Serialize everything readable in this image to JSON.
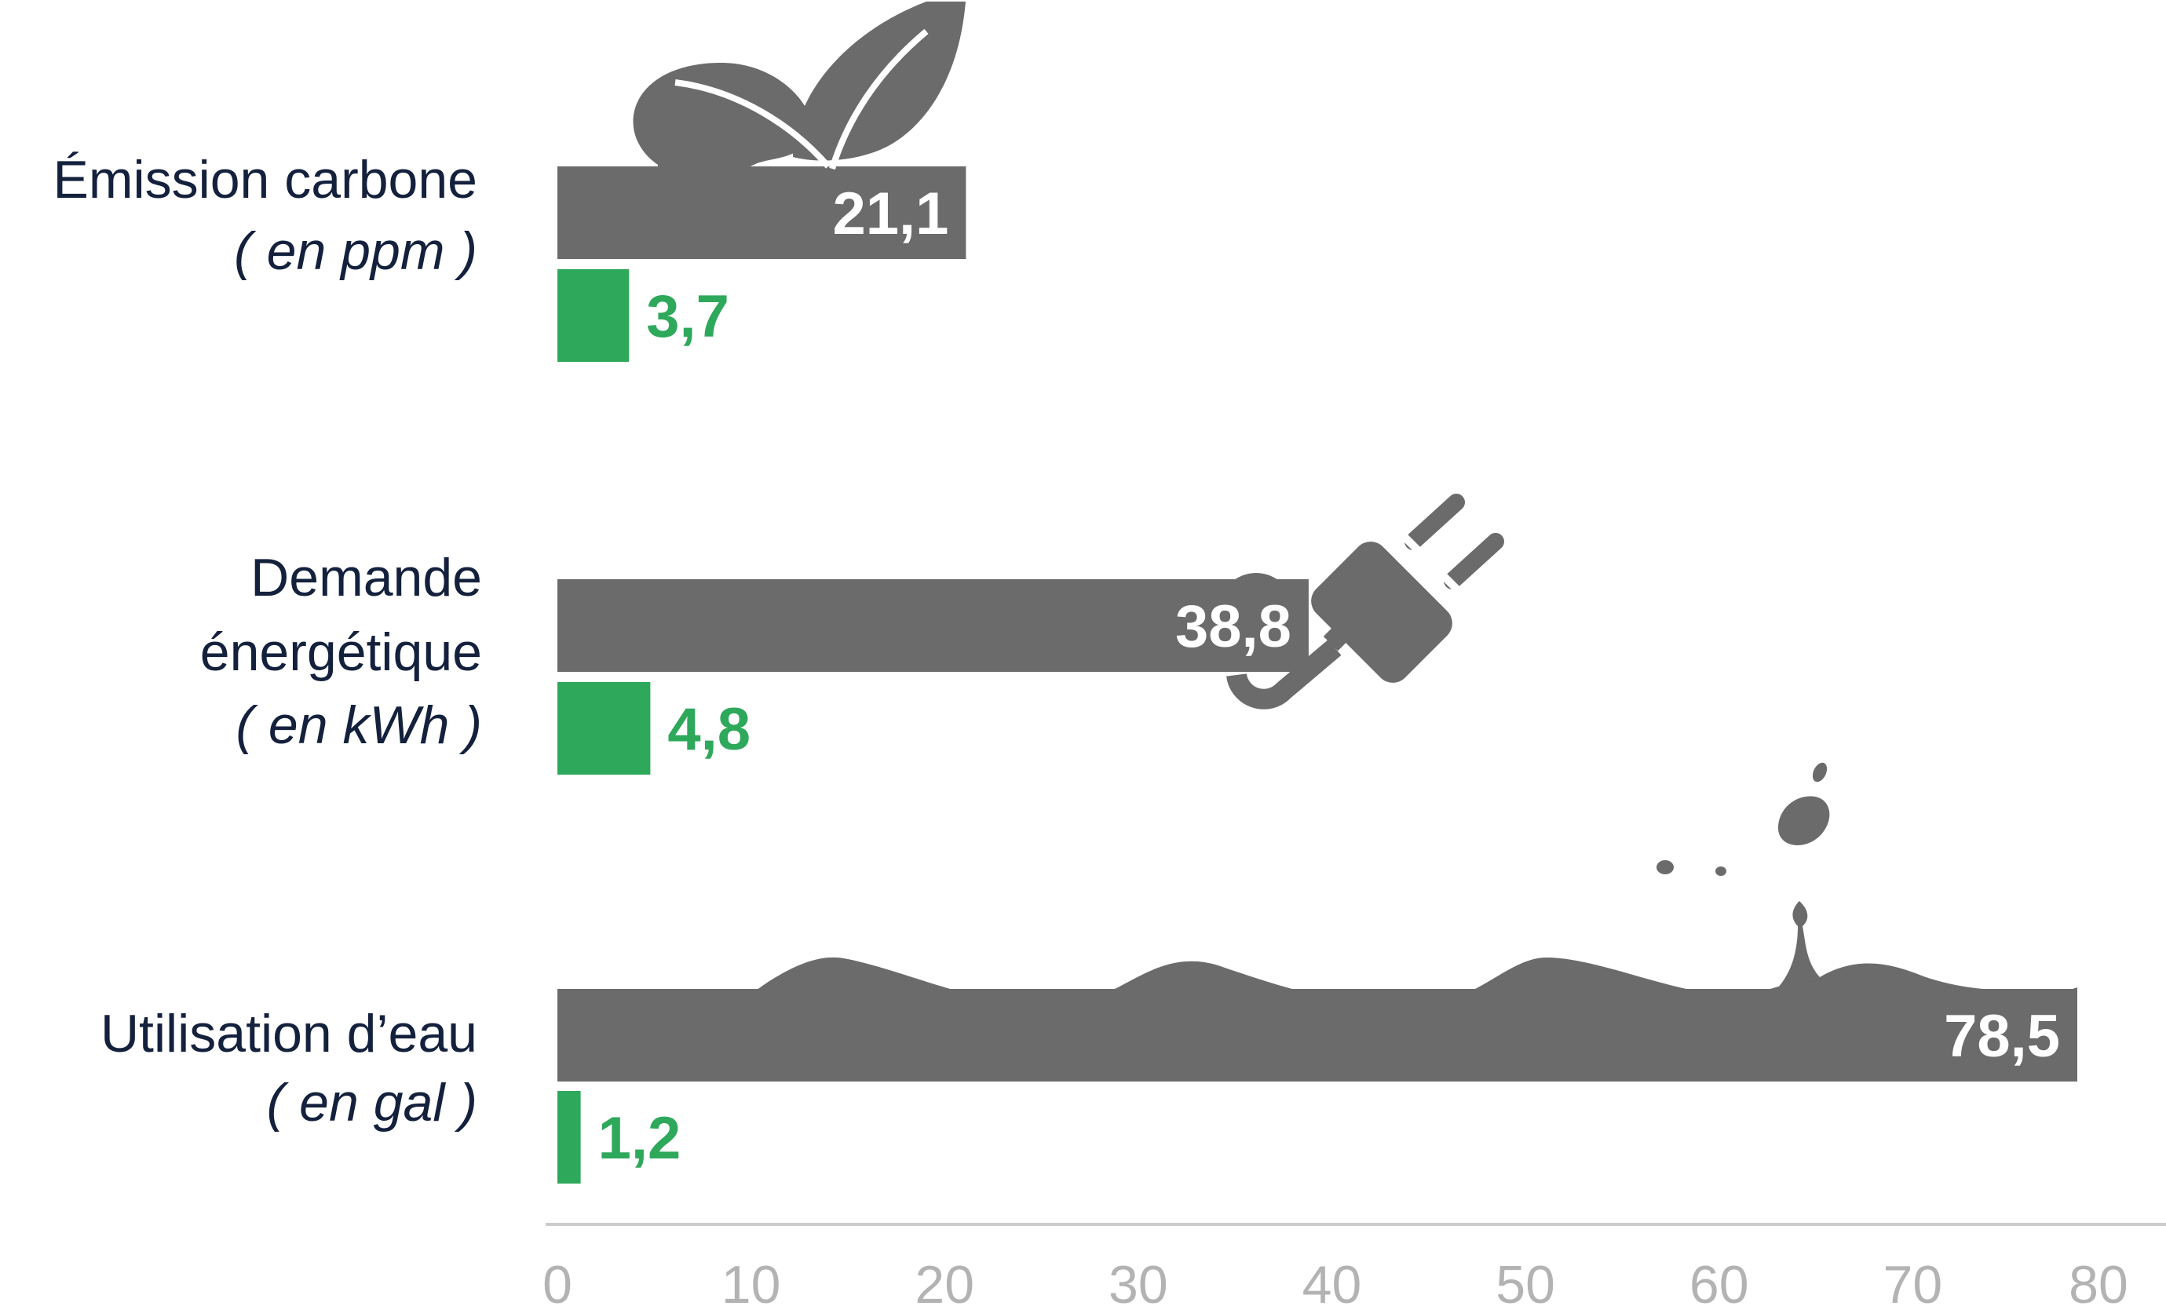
{
  "chart_data": {
    "type": "bar",
    "orientation": "horizontal",
    "categories": [
      {
        "label_lines": [
          "Émission carbone"
        ],
        "unit": "( en ppm )",
        "icon": "leaf-icon"
      },
      {
        "label_lines": [
          "Demande",
          "énergétique"
        ],
        "unit": "( en kWh )",
        "icon": "plug-icon"
      },
      {
        "label_lines": [
          "Utilisation d’eau"
        ],
        "unit": "( en gal )",
        "icon": "water-splash-icon"
      }
    ],
    "series": [
      {
        "values": [
          21.1,
          38.8,
          78.5
        ],
        "labels": [
          "21,1",
          "38,8",
          "78,5"
        ],
        "color": "#6b6b6b"
      },
      {
        "values": [
          3.7,
          4.8,
          1.2
        ],
        "labels": [
          "3,7",
          "4,8",
          "1,2"
        ],
        "color": "#2ea85a"
      }
    ],
    "xlim": [
      0,
      80
    ],
    "xticks": [
      0,
      10,
      20,
      30,
      40,
      50,
      60,
      70,
      80
    ],
    "xtick_labels": [
      "0",
      "10",
      "20",
      "30",
      "40",
      "50",
      "60",
      "70",
      "80"
    ],
    "title": "",
    "xlabel": "",
    "ylabel": "",
    "grid": false,
    "legend": "none",
    "colors": {
      "axis": "#cccccc",
      "tick_text": "#b3b3b3",
      "label_text": "#14213d"
    }
  }
}
